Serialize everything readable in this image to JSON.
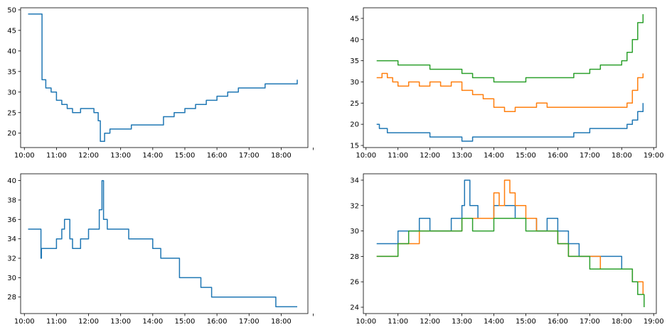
{
  "chart_data": [
    {
      "type": "line",
      "title": "",
      "xlabel": "",
      "ylabel": "",
      "xlim": [
        "09:53",
        "18:50"
      ],
      "ylim": [
        16.5,
        50.5
      ],
      "xticks": [
        "10:00",
        "11:00",
        "12:00",
        "13:00",
        "14:00",
        "15:00",
        "16:00",
        "17:00",
        "18:00",
        ""
      ],
      "yticks": [
        20,
        25,
        30,
        35,
        40,
        45,
        50
      ],
      "grid": false,
      "series": [
        {
          "color": "#1f77b4",
          "x": [
            "10:07",
            "10:32",
            "10:33",
            "10:40",
            "10:50",
            "11:00",
            "11:10",
            "11:20",
            "11:30",
            "11:45",
            "12:00",
            "12:10",
            "12:18",
            "12:22",
            "12:25",
            "12:30",
            "12:40",
            "12:50",
            "13:00",
            "13:20",
            "13:40",
            "14:00",
            "14:20",
            "14:40",
            "15:00",
            "15:20",
            "15:40",
            "16:00",
            "16:20",
            "16:40",
            "17:00",
            "17:30",
            "18:00",
            "18:20",
            "18:30"
          ],
          "y": [
            49,
            49,
            33,
            31,
            30,
            28,
            27,
            26,
            25,
            26,
            26,
            25,
            23,
            18,
            18,
            20,
            21,
            21,
            21,
            22,
            22,
            22,
            24,
            25,
            26,
            27,
            28,
            29,
            30,
            31,
            31,
            32,
            32,
            32,
            33
          ]
        }
      ]
    },
    {
      "type": "line",
      "title": "",
      "xlabel": "",
      "ylabel": "",
      "xlim": [
        "09:55",
        "19:05"
      ],
      "ylim": [
        14.5,
        47.5
      ],
      "xticks": [
        "10:00",
        "11:00",
        "12:00",
        "13:00",
        "14:00",
        "15:00",
        "16:00",
        "17:00",
        "18:00",
        "19:00"
      ],
      "yticks": [
        15,
        20,
        25,
        30,
        35,
        40,
        45
      ],
      "grid": false,
      "series": [
        {
          "color": "#1f77b4",
          "x": [
            "10:20",
            "10:25",
            "10:30",
            "10:40",
            "11:00",
            "11:30",
            "12:00",
            "12:30",
            "13:00",
            "13:20",
            "13:40",
            "14:00",
            "14:30",
            "15:00",
            "15:30",
            "16:00",
            "16:30",
            "17:00",
            "17:30",
            "18:00",
            "18:10",
            "18:20",
            "18:30",
            "18:40"
          ],
          "y": [
            20,
            19,
            19,
            18,
            18,
            18,
            17,
            17,
            16,
            17,
            17,
            17,
            17,
            17,
            17,
            17,
            18,
            19,
            19,
            19,
            20,
            21,
            23,
            25
          ]
        },
        {
          "color": "#ff7f0e",
          "x": [
            "10:20",
            "10:30",
            "10:40",
            "10:50",
            "11:00",
            "11:20",
            "11:40",
            "12:00",
            "12:20",
            "12:40",
            "13:00",
            "13:20",
            "13:40",
            "14:00",
            "14:20",
            "14:40",
            "15:00",
            "15:20",
            "15:40",
            "16:00",
            "16:20",
            "16:40",
            "17:00",
            "17:30",
            "18:00",
            "18:10",
            "18:20",
            "18:30",
            "18:40"
          ],
          "y": [
            31,
            32,
            31,
            30,
            29,
            30,
            29,
            30,
            29,
            30,
            28,
            27,
            26,
            24,
            23,
            24,
            24,
            25,
            24,
            24,
            24,
            24,
            24,
            24,
            24,
            25,
            28,
            31,
            32
          ]
        },
        {
          "color": "#2ca02c",
          "x": [
            "10:20",
            "10:40",
            "11:00",
            "11:20",
            "11:40",
            "12:00",
            "12:20",
            "12:40",
            "13:00",
            "13:20",
            "13:40",
            "14:00",
            "14:30",
            "15:00",
            "15:30",
            "16:00",
            "16:30",
            "17:00",
            "17:20",
            "17:40",
            "18:00",
            "18:10",
            "18:20",
            "18:30",
            "18:40"
          ],
          "y": [
            35,
            35,
            34,
            34,
            34,
            33,
            33,
            33,
            32,
            31,
            31,
            30,
            30,
            31,
            31,
            31,
            32,
            33,
            34,
            34,
            35,
            37,
            40,
            44,
            46
          ]
        }
      ]
    },
    {
      "type": "line",
      "title": "",
      "xlabel": "",
      "ylabel": "",
      "xlim": [
        "09:53",
        "18:50"
      ],
      "ylim": [
        26.3,
        40.7
      ],
      "xticks": [
        "10:00",
        "11:00",
        "12:00",
        "13:00",
        "14:00",
        "15:00",
        "16:00",
        "17:00",
        "18:00",
        ""
      ],
      "yticks": [
        28,
        30,
        32,
        34,
        36,
        38,
        40
      ],
      "grid": false,
      "series": [
        {
          "color": "#1f77b4",
          "x": [
            "10:07",
            "10:30",
            "10:31",
            "10:32",
            "10:40",
            "11:00",
            "11:10",
            "11:15",
            "11:25",
            "11:30",
            "11:45",
            "12:00",
            "12:10",
            "12:20",
            "12:25",
            "12:28",
            "12:35",
            "13:00",
            "13:15",
            "13:30",
            "14:00",
            "14:15",
            "14:30",
            "14:50",
            "15:20",
            "15:30",
            "15:50",
            "16:00",
            "16:30",
            "17:00",
            "17:30",
            "17:50",
            "18:00",
            "18:30"
          ],
          "y": [
            35,
            35,
            32,
            33,
            33,
            34,
            35,
            36,
            34,
            33,
            34,
            35,
            35,
            37,
            40,
            36,
            35,
            35,
            34,
            34,
            33,
            32,
            32,
            30,
            30,
            29,
            28,
            28,
            28,
            28,
            28,
            27,
            27,
            27
          ]
        }
      ]
    },
    {
      "type": "line",
      "title": "",
      "xlabel": "",
      "ylabel": "",
      "xlim": [
        "09:55",
        "19:05"
      ],
      "ylim": [
        23.5,
        34.5
      ],
      "xticks": [
        "10:00",
        "11:00",
        "12:00",
        "13:00",
        "14:00",
        "15:00",
        "16:00",
        "17:00",
        "18:00",
        "19:00"
      ],
      "yticks": [
        24,
        26,
        28,
        30,
        32,
        34
      ],
      "grid": false,
      "series": [
        {
          "color": "#1f77b4",
          "x": [
            "10:20",
            "10:40",
            "11:00",
            "11:20",
            "11:40",
            "12:00",
            "12:20",
            "12:40",
            "13:00",
            "13:05",
            "13:15",
            "13:30",
            "14:00",
            "14:20",
            "14:40",
            "15:00",
            "15:20",
            "15:40",
            "16:00",
            "16:20",
            "16:40",
            "17:00",
            "17:20",
            "17:40",
            "18:00",
            "18:20",
            "18:40"
          ],
          "y": [
            29,
            29,
            30,
            30,
            31,
            30,
            30,
            31,
            32,
            34,
            32,
            31,
            32,
            32,
            31,
            31,
            30,
            31,
            30,
            29,
            28,
            28,
            28,
            28,
            27,
            26,
            26
          ]
        },
        {
          "color": "#ff7f0e",
          "x": [
            "10:20",
            "10:40",
            "11:00",
            "11:20",
            "11:40",
            "12:00",
            "12:20",
            "12:40",
            "13:00",
            "13:20",
            "13:40",
            "14:00",
            "14:10",
            "14:20",
            "14:30",
            "14:40",
            "15:00",
            "15:20",
            "15:40",
            "16:00",
            "16:20",
            "16:40",
            "17:00",
            "17:20",
            "17:40",
            "18:00",
            "18:20",
            "18:30",
            "18:40"
          ],
          "y": [
            28,
            28,
            29,
            29,
            30,
            30,
            30,
            30,
            31,
            31,
            31,
            33,
            32,
            34,
            33,
            32,
            31,
            30,
            30,
            29,
            28,
            28,
            28,
            27,
            27,
            27,
            26,
            26,
            25
          ]
        },
        {
          "color": "#2ca02c",
          "x": [
            "10:20",
            "10:40",
            "11:00",
            "11:20",
            "11:40",
            "12:00",
            "12:20",
            "12:40",
            "13:00",
            "13:20",
            "13:40",
            "14:00",
            "14:20",
            "14:40",
            "15:00",
            "15:20",
            "15:40",
            "16:00",
            "16:20",
            "16:40",
            "17:00",
            "17:20",
            "17:40",
            "18:00",
            "18:20",
            "18:30",
            "18:40",
            "18:42"
          ],
          "y": [
            28,
            28,
            29,
            30,
            30,
            30,
            30,
            30,
            31,
            30,
            30,
            31,
            31,
            31,
            30,
            30,
            30,
            29,
            28,
            28,
            27,
            27,
            27,
            27,
            26,
            25,
            25,
            24
          ]
        }
      ]
    }
  ]
}
